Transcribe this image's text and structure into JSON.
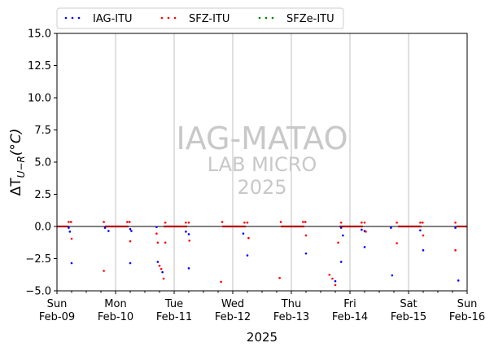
{
  "chart_data": {
    "type": "scatter",
    "watermark": {
      "line1": "IAG-MATAO",
      "line2": "LAB MICRO",
      "line3": "2025"
    },
    "xlabel": "2025",
    "ylabel_main": "ΔT",
    "ylabel_sub": "U−R",
    "ylabel_unit": "(°C)",
    "ylim": [
      -5,
      15
    ],
    "xlim": [
      0,
      7
    ],
    "yticks": [
      {
        "v": 15,
        "label": "15.0"
      },
      {
        "v": 12.5,
        "label": "12.5"
      },
      {
        "v": 10,
        "label": "10.0"
      },
      {
        "v": 7.5,
        "label": "7.5"
      },
      {
        "v": 5,
        "label": "5.0"
      },
      {
        "v": 2.5,
        "label": "2.5"
      },
      {
        "v": 0,
        "label": "0.0"
      },
      {
        "v": -2.5,
        "label": "−2.5"
      },
      {
        "v": -5,
        "label": "−5.0"
      }
    ],
    "xticks": [
      {
        "d": 0,
        "day": "Sun",
        "date": "Feb-09"
      },
      {
        "d": 1,
        "day": "Mon",
        "date": "Feb-10"
      },
      {
        "d": 2,
        "day": "Tue",
        "date": "Feb-11"
      },
      {
        "d": 3,
        "day": "Wed",
        "date": "Feb-12"
      },
      {
        "d": 4,
        "day": "Thu",
        "date": "Feb-13"
      },
      {
        "d": 5,
        "day": "Fri",
        "date": "Feb-14"
      },
      {
        "d": 6,
        "day": "Sat",
        "date": "Feb-15"
      },
      {
        "d": 7,
        "day": "Sun",
        "date": "Feb-16"
      }
    ],
    "grid": "vertical-major",
    "legend_position": "top-center-above",
    "series": [
      {
        "name": "IAG-ITU",
        "color": "#0000ff",
        "points": [
          [
            0.2,
            -0.1
          ],
          [
            0.22,
            -0.4
          ],
          [
            0.25,
            -2.85
          ],
          [
            0.82,
            -0.1
          ],
          [
            0.88,
            -0.35
          ],
          [
            1.25,
            -0.2
          ],
          [
            1.27,
            -0.35
          ],
          [
            1.25,
            -2.85
          ],
          [
            1.7,
            -0.05
          ],
          [
            1.72,
            -2.75
          ],
          [
            1.8,
            -3.55
          ],
          [
            2.2,
            -0.4
          ],
          [
            2.25,
            -0.6
          ],
          [
            2.25,
            -3.25
          ],
          [
            3.18,
            -0.55
          ],
          [
            3.25,
            -2.25
          ],
          [
            4.25,
            -2.1
          ],
          [
            4.85,
            -0.1
          ],
          [
            4.75,
            -4.25
          ],
          [
            4.85,
            -2.75
          ],
          [
            4.88,
            -0.7
          ],
          [
            5.2,
            -0.25
          ],
          [
            5.25,
            -0.35
          ],
          [
            5.25,
            -1.6
          ],
          [
            5.7,
            -0.1
          ],
          [
            5.72,
            -3.8
          ],
          [
            6.2,
            -0.3
          ],
          [
            6.25,
            -1.85
          ],
          [
            6.8,
            -0.1
          ],
          [
            6.85,
            -4.2
          ]
        ]
      },
      {
        "name": "SFZ-ITU",
        "color": "#ff0000",
        "points": [
          [
            0.2,
            0.35
          ],
          [
            0.24,
            0.35
          ],
          [
            0.25,
            -0.95
          ],
          [
            0.8,
            0.35
          ],
          [
            0.8,
            -3.45
          ],
          [
            1.2,
            0.35
          ],
          [
            1.24,
            0.35
          ],
          [
            1.25,
            -1.15
          ],
          [
            1.7,
            -0.55
          ],
          [
            1.72,
            -1.25
          ],
          [
            1.75,
            -3.05
          ],
          [
            1.78,
            -3.3
          ],
          [
            1.82,
            -4.05
          ],
          [
            1.85,
            0.3
          ],
          [
            1.85,
            -1.25
          ],
          [
            2.2,
            0.3
          ],
          [
            2.25,
            0.3
          ],
          [
            2.26,
            -1.1
          ],
          [
            2.8,
            -4.3
          ],
          [
            2.82,
            0.35
          ],
          [
            3.2,
            0.3
          ],
          [
            3.25,
            0.3
          ],
          [
            3.27,
            -0.9
          ],
          [
            3.8,
            -4.0
          ],
          [
            3.82,
            0.35
          ],
          [
            4.2,
            0.35
          ],
          [
            4.24,
            0.35
          ],
          [
            4.25,
            -0.7
          ],
          [
            4.65,
            -3.75
          ],
          [
            4.7,
            -4.05
          ],
          [
            4.75,
            -4.55
          ],
          [
            4.8,
            -1.25
          ],
          [
            4.85,
            0.3
          ],
          [
            5.2,
            0.3
          ],
          [
            5.25,
            0.3
          ],
          [
            5.27,
            -0.4
          ],
          [
            5.8,
            -1.3
          ],
          [
            5.8,
            0.3
          ],
          [
            6.2,
            0.3
          ],
          [
            6.24,
            0.3
          ],
          [
            6.25,
            -0.7
          ],
          [
            6.8,
            0.3
          ],
          [
            6.8,
            -1.85
          ]
        ]
      },
      {
        "name": "SFZe-ITU",
        "color": "#008000",
        "points": []
      }
    ],
    "daily_segments": [
      [
        0.0,
        0.2
      ],
      [
        0.82,
        1.22
      ],
      [
        1.82,
        2.22
      ],
      [
        2.82,
        3.22
      ],
      [
        3.82,
        4.22
      ],
      [
        4.82,
        5.22
      ],
      [
        5.82,
        6.22
      ],
      [
        6.82,
        7.0
      ]
    ],
    "zero_line": 0
  }
}
